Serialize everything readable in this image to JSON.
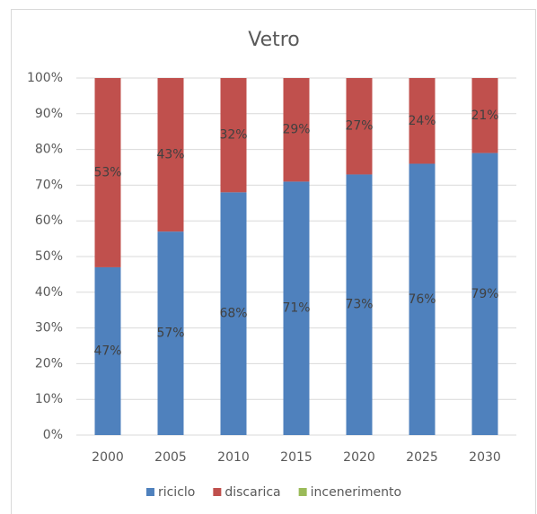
{
  "chart_data": {
    "type": "stacked_bar",
    "title": "Vetro",
    "categories": [
      "2000",
      "2005",
      "2010",
      "2015",
      "2020",
      "2025",
      "2030"
    ],
    "series": [
      {
        "name": "riciclo",
        "color": "#4f81bd",
        "values": [
          47,
          57,
          68,
          71,
          73,
          76,
          79
        ],
        "value_labels": [
          "47%",
          "57%",
          "68%",
          "71%",
          "73%",
          "76%",
          "79%"
        ]
      },
      {
        "name": "discarica",
        "color": "#c0504d",
        "values": [
          53,
          43,
          32,
          29,
          27,
          24,
          21
        ],
        "value_labels": [
          "53%",
          "43%",
          "32%",
          "29%",
          "27%",
          "24%",
          "21%"
        ]
      },
      {
        "name": "incenerimento",
        "color": "#9bbb59",
        "values": [
          0,
          0,
          0,
          0,
          0,
          0,
          0
        ]
      }
    ],
    "ylim": [
      0,
      100
    ],
    "yticks": [
      {
        "value": 0,
        "label": "0%"
      },
      {
        "value": 10,
        "label": "10%"
      },
      {
        "value": 20,
        "label": "20%"
      },
      {
        "value": 30,
        "label": "30%"
      },
      {
        "value": 40,
        "label": "40%"
      },
      {
        "value": 50,
        "label": "50%"
      },
      {
        "value": 60,
        "label": "60%"
      },
      {
        "value": 70,
        "label": "70%"
      },
      {
        "value": 80,
        "label": "80%"
      },
      {
        "value": 90,
        "label": "90%"
      },
      {
        "value": 100,
        "label": "100%"
      }
    ],
    "grid": true,
    "legend": "bottom"
  }
}
